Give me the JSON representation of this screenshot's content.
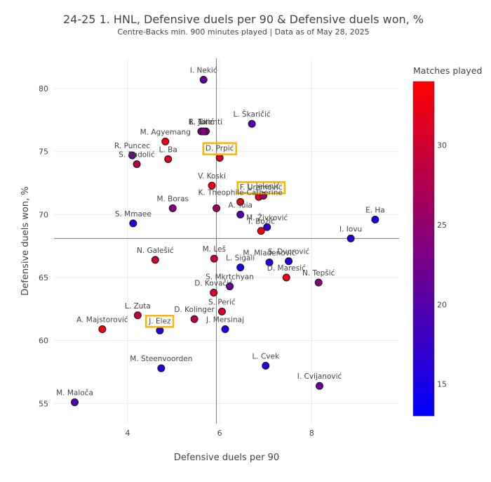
{
  "chart_data": {
    "type": "scatter",
    "title": "24-25 1. HNL, Defensive duels per 90 & Defensive duels won, %",
    "subtitle": "Centre-Backs min. 900 minutes played | Data as of May 28, 2025",
    "xlabel": "Defensive duels per 90",
    "ylabel": "Defensive duels won, %",
    "xlim": [
      2.4,
      9.9
    ],
    "ylim": [
      53.4,
      82.4
    ],
    "x_ticks": [
      4,
      6,
      8
    ],
    "y_ticks": [
      55,
      60,
      65,
      70,
      75,
      80
    ],
    "reference_lines": {
      "x": 5.93,
      "y": 68.1
    },
    "grid": true,
    "colorbar": {
      "title": "Matches played",
      "range": [
        13,
        34
      ],
      "ticks": [
        15,
        20,
        25,
        30
      ],
      "colors": [
        "#0000ff",
        "#ff0000"
      ]
    },
    "points": [
      {
        "name": "I. Nekić",
        "x": 5.65,
        "y": 80.7,
        "matches": 21
      },
      {
        "name": "L. Škaričić",
        "x": 6.7,
        "y": 77.2,
        "matches": 20
      },
      {
        "name": "R. Jurić",
        "x": 5.7,
        "y": 76.6,
        "matches": 22
      },
      {
        "name": "R. Tolić",
        "x": 5.6,
        "y": 76.6,
        "matches": 23
      },
      {
        "name": "L. Cirenti",
        "x": 5.65,
        "y": 76.6,
        "matches": 24
      },
      {
        "name": "M. Agyemang",
        "x": 4.82,
        "y": 75.8,
        "matches": 33
      },
      {
        "name": "R. Puncec",
        "x": 4.1,
        "y": 74.7,
        "matches": 22
      },
      {
        "name": "L. Ba",
        "x": 4.88,
        "y": 74.4,
        "matches": 31
      },
      {
        "name": "D. Prpić",
        "x": 6.0,
        "y": 74.5,
        "matches": 31,
        "highlight": true
      },
      {
        "name": "S. Radolić",
        "x": 4.2,
        "y": 74.0,
        "matches": 28
      },
      {
        "name": "V. Koski",
        "x": 5.83,
        "y": 72.3,
        "matches": 33
      },
      {
        "name": "F. Uremović",
        "x": 6.85,
        "y": 71.4,
        "matches": 32,
        "highlight": true
      },
      {
        "name": "L. Jelenić",
        "x": 6.95,
        "y": 71.5,
        "matches": 27
      },
      {
        "name": "K. Theophile-Catherine",
        "x": 6.45,
        "y": 71.0,
        "matches": 33
      },
      {
        "name": "A. Tuia",
        "x": 6.45,
        "y": 70.0,
        "matches": 20
      },
      {
        "name": "M. Boras",
        "x": 4.98,
        "y": 70.5,
        "matches": 24
      },
      {
        "name": "K. Theophile-Catherine (2)",
        "x": 5.93,
        "y": 70.5,
        "matches": 26
      },
      {
        "name": "S. Mmaee",
        "x": 4.12,
        "y": 69.3,
        "matches": 16
      },
      {
        "name": "M. Živković",
        "x": 7.03,
        "y": 69.0,
        "matches": 17
      },
      {
        "name": "T. Božić",
        "x": 6.9,
        "y": 68.7,
        "matches": 33
      },
      {
        "name": "E. Hajdari",
        "x": 9.38,
        "y": 69.6,
        "matches": 15
      },
      {
        "name": "I. Iovu",
        "x": 8.85,
        "y": 68.1,
        "matches": 16
      },
      {
        "name": "N. Galešić",
        "x": 4.6,
        "y": 66.4,
        "matches": 30
      },
      {
        "name": "M. Leš",
        "x": 5.88,
        "y": 66.5,
        "matches": 30
      },
      {
        "name": "L. Sigali",
        "x": 6.45,
        "y": 65.8,
        "matches": 15
      },
      {
        "name": "M. Mladenović",
        "x": 7.08,
        "y": 66.2,
        "matches": 16
      },
      {
        "name": "S. Dvorović",
        "x": 7.5,
        "y": 66.3,
        "matches": 16
      },
      {
        "name": "D. Maresić",
        "x": 7.45,
        "y": 65.0,
        "matches": 33
      },
      {
        "name": "N. Tepšić",
        "x": 8.15,
        "y": 64.6,
        "matches": 24
      },
      {
        "name": "S. Mkrtchyan",
        "x": 6.22,
        "y": 64.3,
        "matches": 21
      },
      {
        "name": "D. Kovačić",
        "x": 5.87,
        "y": 63.8,
        "matches": 31
      },
      {
        "name": "S. Perić",
        "x": 6.05,
        "y": 62.3,
        "matches": 31
      },
      {
        "name": "D. Kolinger",
        "x": 5.45,
        "y": 61.7,
        "matches": 28
      },
      {
        "name": "L. Zuta",
        "x": 4.22,
        "y": 62.0,
        "matches": 29
      },
      {
        "name": "A. Majstorović",
        "x": 3.45,
        "y": 60.9,
        "matches": 33
      },
      {
        "name": "J. Elez",
        "x": 4.7,
        "y": 60.8,
        "matches": 16,
        "highlight": true
      },
      {
        "name": "J. Mersinaj",
        "x": 6.12,
        "y": 60.9,
        "matches": 15
      },
      {
        "name": "M. Steenvoorden",
        "x": 4.73,
        "y": 57.8,
        "matches": 16
      },
      {
        "name": "L. Cvek",
        "x": 7.0,
        "y": 58.0,
        "matches": 16
      },
      {
        "name": "I. Cvijanović",
        "x": 8.17,
        "y": 56.4,
        "matches": 22
      },
      {
        "name": "M. Maloča",
        "x": 2.85,
        "y": 55.1,
        "matches": 20
      }
    ],
    "labels": [
      {
        "text": "I. Nekić",
        "x": 5.65,
        "y": 80.7
      },
      {
        "text": "L. Škaričić",
        "x": 6.7,
        "y": 77.2
      },
      {
        "text": "R. Jurić",
        "x": 5.6,
        "y": 76.6
      },
      {
        "text": "R. Tolić",
        "x": 5.6,
        "y": 76.6
      },
      {
        "text": "L. Cirenti",
        "x": 5.7,
        "y": 76.6
      },
      {
        "text": "M. Agyemang",
        "x": 4.82,
        "y": 75.8
      },
      {
        "text": "R. Puncec",
        "x": 4.1,
        "y": 74.7
      },
      {
        "text": "L. Ba",
        "x": 4.88,
        "y": 74.4
      },
      {
        "text": "D. Prpić",
        "x": 6.0,
        "y": 74.5,
        "highlight": true
      },
      {
        "text": "S. Radolić",
        "x": 4.2,
        "y": 74.0
      },
      {
        "text": "V. Koski",
        "x": 5.83,
        "y": 72.3
      },
      {
        "text": "F. Uremović",
        "x": 6.9,
        "y": 71.4,
        "highlight": true
      },
      {
        "text": "L. Jelenić",
        "x": 6.95,
        "y": 71.5
      },
      {
        "text": "K. Theophile-Catherine",
        "x": 6.45,
        "y": 71.0
      },
      {
        "text": "A. Tuia",
        "x": 6.45,
        "y": 70.0
      },
      {
        "text": "M. Boras",
        "x": 4.98,
        "y": 70.5
      },
      {
        "text": "S. Mmaee",
        "x": 4.12,
        "y": 69.3
      },
      {
        "text": "M. Živković",
        "x": 7.03,
        "y": 69.0
      },
      {
        "text": "T. Božić",
        "x": 6.9,
        "y": 68.7
      },
      {
        "text": "E. Ha",
        "x": 9.38,
        "y": 69.6
      },
      {
        "text": "I. Iovu",
        "x": 8.85,
        "y": 68.1
      },
      {
        "text": "N. Galešić",
        "x": 4.6,
        "y": 66.4
      },
      {
        "text": "M. Leš",
        "x": 5.88,
        "y": 66.5
      },
      {
        "text": "L. Sigali",
        "x": 6.45,
        "y": 65.8
      },
      {
        "text": "M. Mladenović",
        "x": 7.08,
        "y": 66.2
      },
      {
        "text": "S. Dvorović",
        "x": 7.5,
        "y": 66.3
      },
      {
        "text": "D. Maresić",
        "x": 7.45,
        "y": 65.0
      },
      {
        "text": "N. Tepšić",
        "x": 8.15,
        "y": 64.6
      },
      {
        "text": "S. Mkrtchyan",
        "x": 6.22,
        "y": 64.3
      },
      {
        "text": "D. Kovačić",
        "x": 5.87,
        "y": 63.8
      },
      {
        "text": "S. Perić",
        "x": 6.05,
        "y": 62.3
      },
      {
        "text": "D. Kolinger",
        "x": 5.45,
        "y": 61.7
      },
      {
        "text": "L. Zuta",
        "x": 4.22,
        "y": 62.0
      },
      {
        "text": "A. Majstorović",
        "x": 3.45,
        "y": 60.9
      },
      {
        "text": "J. Elez",
        "x": 4.7,
        "y": 60.8,
        "highlight": true
      },
      {
        "text": "J. Mersinaj",
        "x": 6.12,
        "y": 60.9
      },
      {
        "text": "M. Steenvoorden",
        "x": 4.73,
        "y": 57.8
      },
      {
        "text": "L. Cvek",
        "x": 7.0,
        "y": 58.0
      },
      {
        "text": "I. Cvijanović",
        "x": 8.17,
        "y": 56.4
      },
      {
        "text": "M. Maloča",
        "x": 2.85,
        "y": 55.1
      }
    ],
    "highlight_color": "#f5b700"
  }
}
